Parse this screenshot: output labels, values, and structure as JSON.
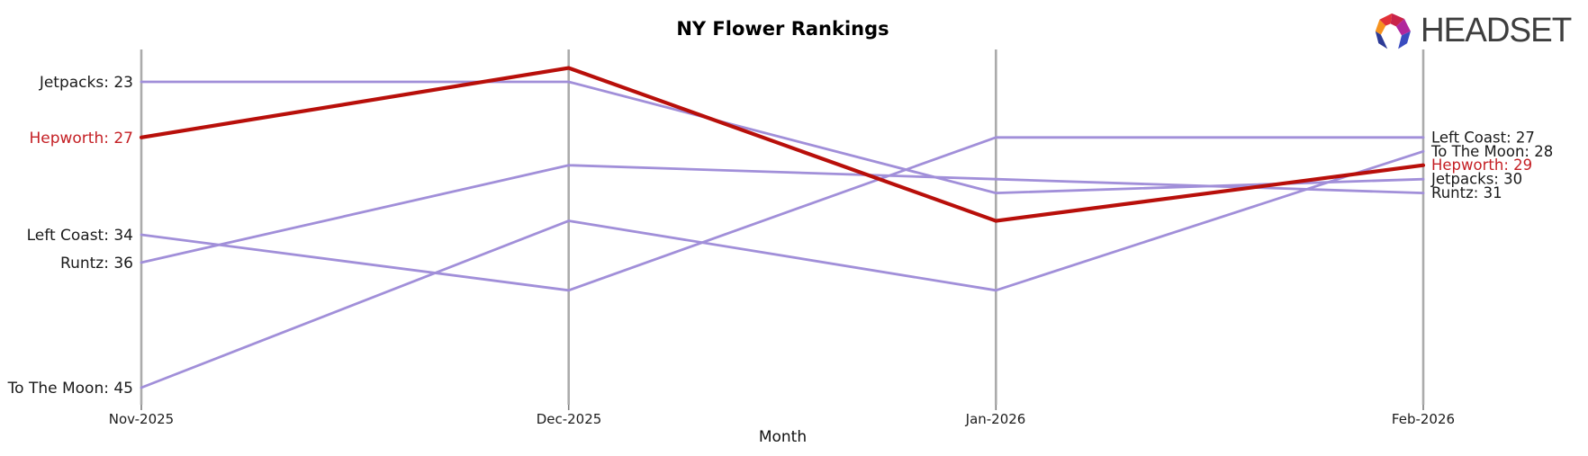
{
  "header": {
    "brand": "HEADSET",
    "logo_icon": "headset-faceted-hex-logo"
  },
  "chart_data": {
    "type": "line",
    "subtype": "bump-ranking-chart",
    "title": "NY Flower Rankings",
    "xlabel": "Month",
    "categories": [
      "Nov-2025",
      "Dec-2025",
      "Jan-2026",
      "Feb-2026"
    ],
    "y_axis": "rank (lower number = higher position, axis inverted, no visible ticks)",
    "legend_position": "inline-edge-labels",
    "grid": "vertical-only",
    "series": [
      {
        "name": "Jetpacks",
        "values": [
          23,
          23,
          31,
          30
        ],
        "left_label": "Jetpacks: 23",
        "right_label": "Jetpacks: 30",
        "color": "#a18fd9",
        "label_color": "#1a1a1a",
        "emphasis": false
      },
      {
        "name": "Left Coast",
        "values": [
          34,
          38,
          27,
          27
        ],
        "left_label": "Left Coast: 34",
        "right_label": "Left Coast: 27",
        "color": "#a18fd9",
        "label_color": "#1a1a1a",
        "emphasis": false
      },
      {
        "name": "Runtz",
        "values": [
          36,
          29,
          30,
          31
        ],
        "left_label": "Runtz: 36",
        "right_label": "Runtz: 31",
        "color": "#a18fd9",
        "label_color": "#1a1a1a",
        "emphasis": false
      },
      {
        "name": "To The Moon",
        "values": [
          45,
          33,
          38,
          28
        ],
        "left_label": "To The Moon: 45",
        "right_label": "To The Moon: 28",
        "color": "#a18fd9",
        "label_color": "#1a1a1a",
        "emphasis": false
      },
      {
        "name": "Hepworth",
        "values": [
          27,
          22,
          33,
          29
        ],
        "left_label": "Hepworth: 27",
        "right_label": "Hepworth: 29",
        "color": "#b80f0a",
        "label_color": "#c41f24",
        "emphasis": true
      }
    ],
    "colors": {
      "gridline": "#ababab",
      "line_default": "#a18fd9",
      "line_highlight": "#b80f0a"
    }
  }
}
